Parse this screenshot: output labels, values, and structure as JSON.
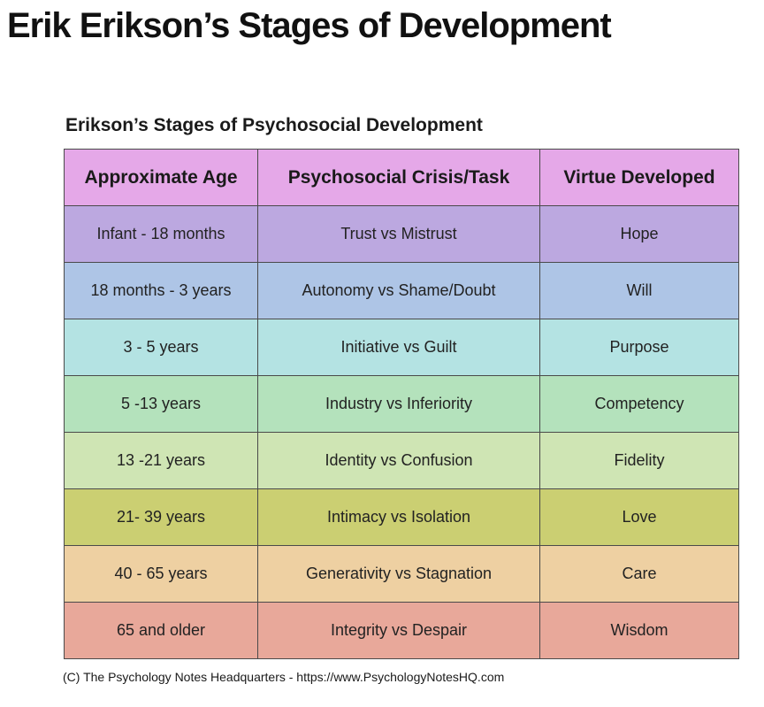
{
  "page": {
    "title": "Erik Erikson’s Stages of Development"
  },
  "chart_data": {
    "type": "table",
    "title": "Erikson’s Stages of Psychosocial Development",
    "columns": [
      "Approximate Age",
      "Psychosocial Crisis/Task",
      "Virtue Developed"
    ],
    "header_color": "#e5a8e8",
    "rows": [
      {
        "cells": [
          "Infant - 18 months",
          "Trust vs Mistrust",
          "Hope"
        ],
        "color": "#bca8e0"
      },
      {
        "cells": [
          "18 months - 3 years",
          "Autonomy vs Shame/Doubt",
          "Will"
        ],
        "color": "#aec5e6"
      },
      {
        "cells": [
          "3 - 5 years",
          "Initiative vs Guilt",
          "Purpose"
        ],
        "color": "#b4e3e3"
      },
      {
        "cells": [
          "5 -13 years",
          "Industry vs Inferiority",
          "Competency"
        ],
        "color": "#b4e2bc"
      },
      {
        "cells": [
          "13 -21 years",
          "Identity vs Confusion",
          "Fidelity"
        ],
        "color": "#cfe5b4"
      },
      {
        "cells": [
          "21- 39 years",
          "Intimacy vs Isolation",
          "Love"
        ],
        "color": "#cbcf72"
      },
      {
        "cells": [
          "40 - 65 years",
          "Generativity vs Stagnation",
          "Care"
        ],
        "color": "#eed0a2"
      },
      {
        "cells": [
          "65 and older",
          "Integrity vs Despair",
          "Wisdom"
        ],
        "color": "#e8a89a"
      }
    ],
    "credit": "(C) The Psychology Notes Headquarters - https://www.PsychologyNotesHQ.com"
  }
}
